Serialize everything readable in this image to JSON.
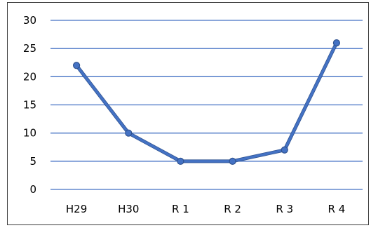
{
  "chart_data": {
    "type": "line",
    "categories": [
      "H29",
      "H30",
      "R 1",
      "R 2",
      "R 3",
      "R 4"
    ],
    "series": [
      {
        "values": [
          22,
          10,
          5,
          5,
          7,
          26
        ]
      }
    ],
    "title": "",
    "xlabel": "",
    "ylabel": "",
    "ylim": [
      0,
      30
    ],
    "yticks": [
      "0",
      "5",
      "10",
      "15",
      "20",
      "25",
      "30"
    ],
    "grid": true,
    "legend": "none",
    "colors": {
      "line": "#4472c4",
      "line_edge": "#2f528f",
      "marker": "#4472c4",
      "gridline": "#4472c4",
      "frame": "#3b3b3b"
    }
  }
}
